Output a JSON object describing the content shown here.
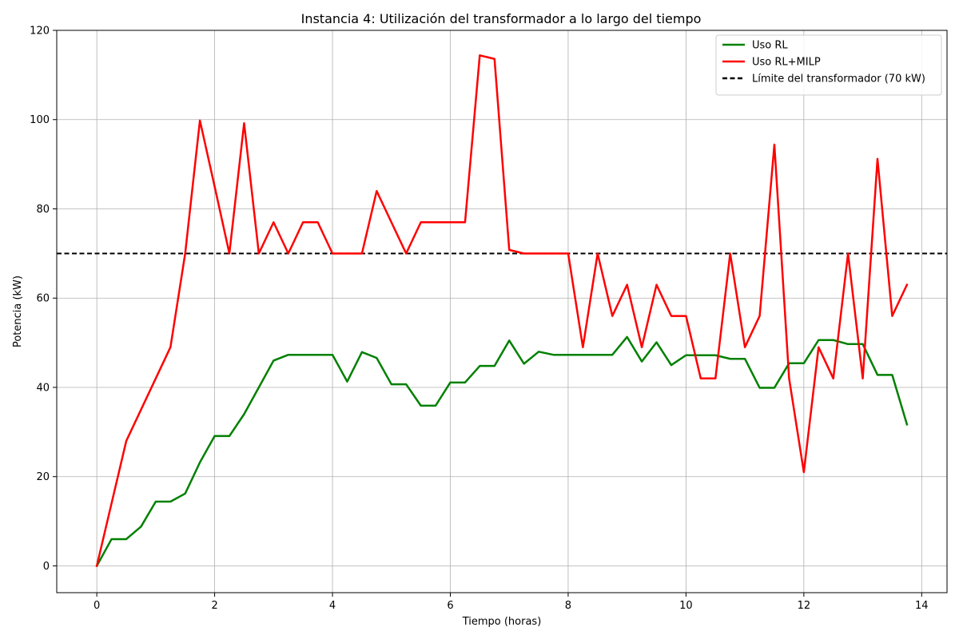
{
  "chart_data": {
    "type": "line",
    "title": "Instancia 4: Utilización del transformador a lo largo del tiempo",
    "xlabel": "Tiempo (horas)",
    "ylabel": "Potencia (kW)",
    "xlim": [
      -0.68,
      14.43
    ],
    "ylim": [
      -6,
      120
    ],
    "xticks": [
      0,
      2,
      4,
      6,
      8,
      10,
      12,
      14
    ],
    "yticks": [
      0,
      20,
      40,
      60,
      80,
      100,
      120
    ],
    "grid": true,
    "legend_position": "top-right",
    "x": [
      0,
      0.25,
      0.5,
      0.75,
      1,
      1.25,
      1.5,
      1.75,
      2,
      2.25,
      2.5,
      2.75,
      3,
      3.25,
      3.5,
      3.75,
      4,
      4.25,
      4.5,
      4.75,
      5,
      5.25,
      5.5,
      5.75,
      6,
      6.25,
      6.5,
      6.75,
      7,
      7.25,
      7.5,
      7.75,
      8,
      8.25,
      8.5,
      8.75,
      9,
      9.25,
      9.5,
      9.75,
      10,
      10.25,
      10.5,
      10.75,
      11,
      11.25,
      11.5,
      11.75,
      12,
      12.25,
      12.5,
      12.75,
      13,
      13.25,
      13.5,
      13.75
    ],
    "series": [
      {
        "name": "Uso RL",
        "color": "#008000",
        "dash": "solid",
        "values": [
          0,
          6,
          6,
          8.8,
          14.4,
          14.4,
          16.2,
          23.2,
          29.1,
          29.1,
          34,
          40,
          46,
          47.3,
          47.3,
          47.3,
          47.3,
          41.3,
          47.9,
          46.6,
          40.7,
          40.7,
          35.9,
          35.9,
          41.1,
          41.1,
          44.8,
          44.8,
          50.5,
          45.3,
          48,
          47.3,
          47.3,
          47.3,
          47.3,
          47.3,
          51.3,
          45.8,
          50.1,
          45,
          47.2,
          47.2,
          47.2,
          46.4,
          46.4,
          39.9,
          39.9,
          45.4,
          45.4,
          50.6,
          50.6,
          49.7,
          49.7,
          42.8,
          42.8,
          31.7
        ]
      },
      {
        "name": "Uso RL+MILP",
        "color": "#ff0000",
        "dash": "solid",
        "values": [
          0,
          14,
          28,
          35,
          42,
          49,
          70,
          99.8,
          85,
          70,
          99.2,
          70,
          77,
          70,
          77,
          77,
          70,
          70,
          70,
          84,
          77,
          70,
          77,
          77,
          77,
          77,
          114.4,
          113.6,
          70.8,
          70,
          70,
          70,
          70,
          49,
          70,
          56,
          63,
          49,
          63,
          56,
          56,
          42,
          42,
          70,
          49,
          56,
          94.4,
          42,
          21,
          49,
          42,
          70,
          42,
          91.2,
          56,
          63
        ]
      }
    ],
    "reference_lines": [
      {
        "name": "Límite del transformador (70 kW)",
        "y": 70,
        "color": "#000000",
        "dash": "dashed"
      }
    ]
  }
}
